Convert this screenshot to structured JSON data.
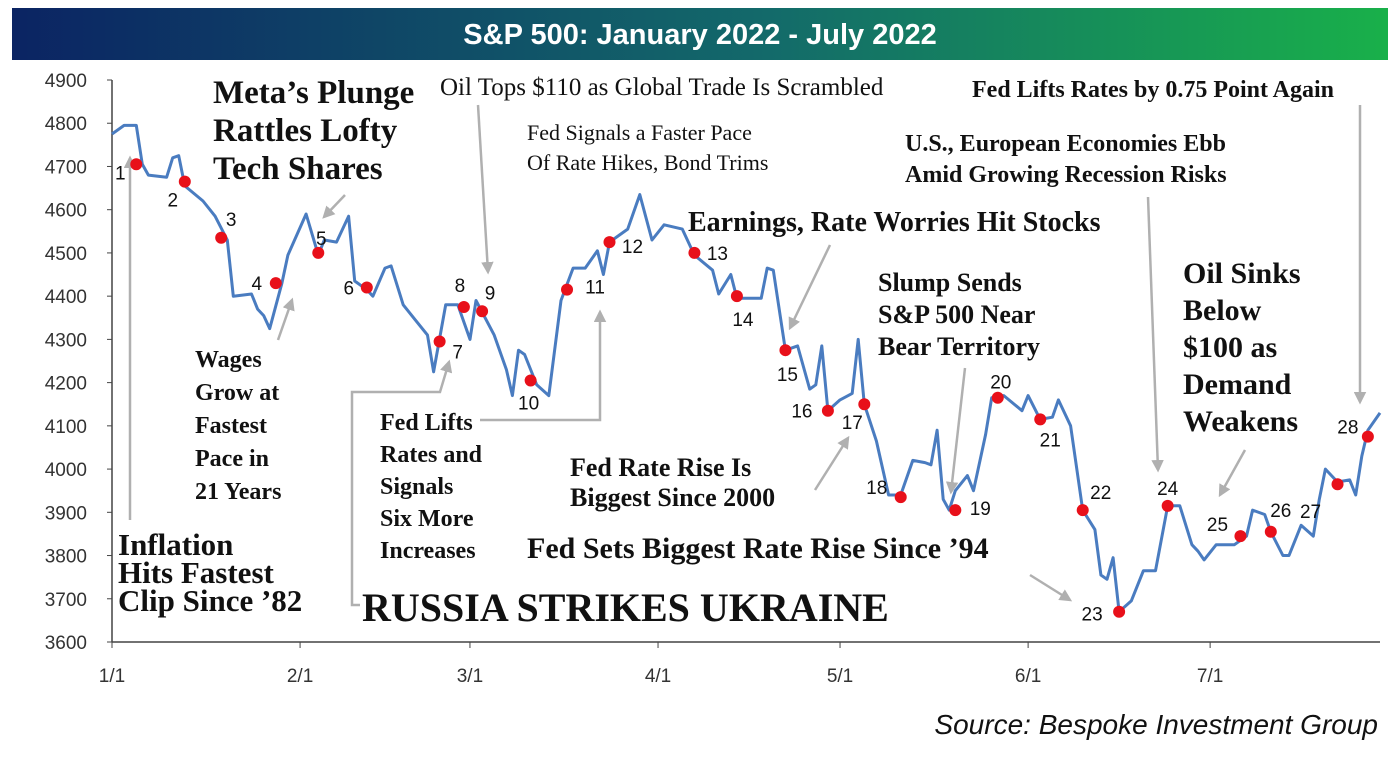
{
  "chart_data": {
    "type": "line",
    "title": "S&P 500: January 2022 - July 2022",
    "source": "Source: Bespoke Investment Group",
    "color": "#4a7cc0",
    "x": [
      0,
      2,
      4,
      5,
      6,
      9,
      10,
      11,
      12,
      15,
      17,
      19,
      20,
      23,
      24,
      25,
      26,
      28,
      29,
      32,
      34,
      35,
      37,
      39,
      40,
      42,
      43,
      45,
      46,
      48,
      50,
      52,
      53,
      55,
      57,
      59,
      60,
      63,
      65,
      66,
      67,
      68,
      70,
      72,
      74,
      76,
      78,
      80,
      81,
      82,
      85,
      87,
      89,
      91,
      94,
      96,
      99,
      100,
      102,
      103,
      107,
      108,
      109,
      111,
      113,
      115,
      116,
      117,
      118,
      120,
      122,
      123,
      124,
      126,
      128,
      130,
      132,
      134,
      135,
      136,
      137,
      138,
      139,
      141,
      142,
      144,
      145,
      147,
      150,
      151,
      153,
      155,
      156,
      158,
      160,
      162,
      163,
      164,
      165,
      166,
      168,
      170,
      172,
      174,
      176,
      178,
      179,
      180,
      182,
      185,
      187,
      188,
      190,
      191,
      193,
      194,
      196,
      198,
      199,
      200,
      202,
      204,
      205,
      206,
      207,
      209
    ],
    "values": [
      4775,
      4795,
      4795,
      4705,
      4680,
      4675,
      4720,
      4725,
      4655,
      4620,
      4585,
      4530,
      4400,
      4405,
      4370,
      4355,
      4325,
      4430,
      4495,
      4590,
      4495,
      4530,
      4525,
      4585,
      4435,
      4415,
      4400,
      4465,
      4470,
      4380,
      4345,
      4310,
      4225,
      4380,
      4380,
      4300,
      4390,
      4310,
      4230,
      4170,
      4275,
      4265,
      4195,
      4170,
      4390,
      4465,
      4465,
      4505,
      4450,
      4525,
      4555,
      4635,
      4530,
      4565,
      4555,
      4495,
      4460,
      4405,
      4450,
      4395,
      4395,
      4465,
      4460,
      4275,
      4285,
      4185,
      4195,
      4285,
      4135,
      4160,
      4175,
      4300,
      4150,
      4065,
      3940,
      3940,
      4020,
      4015,
      4010,
      4090,
      3930,
      3905,
      3950,
      3985,
      3950,
      4080,
      4165,
      4170,
      4135,
      4170,
      4115,
      4120,
      4160,
      4100,
      3905,
      3860,
      3755,
      3745,
      3795,
      3670,
      3695,
      3765,
      3765,
      3915,
      3915,
      3825,
      3810,
      3790,
      3825,
      3825,
      3845,
      3905,
      3895,
      3855,
      3800,
      3800,
      3870,
      3845,
      3930,
      4000,
      3970,
      3975,
      3940,
      4030,
      4090,
      4130
    ],
    "events": {
      "color": "#e8101a",
      "x": [
        4,
        12,
        18,
        27,
        34,
        42,
        54,
        58,
        61,
        69,
        75,
        82,
        96,
        103,
        111,
        118,
        124,
        130,
        139,
        146,
        153,
        160,
        166,
        174,
        186,
        191,
        202,
        207
      ],
      "values": [
        4705,
        4665,
        4535,
        4430,
        4500,
        4420,
        4295,
        4375,
        4365,
        4205,
        4415,
        4525,
        4500,
        4400,
        4275,
        4135,
        4150,
        3935,
        3905,
        4165,
        4115,
        3905,
        3670,
        3915,
        3845,
        3855,
        3965,
        4075
      ],
      "labels": [
        "1",
        "2",
        "3",
        "4",
        "5",
        "6",
        "7",
        "8",
        "9",
        "10",
        "11",
        "12",
        "13",
        "14",
        "15",
        "16",
        "17",
        "18",
        "19",
        "20",
        "21",
        "22",
        "23",
        "24",
        "25",
        "26",
        "27",
        "28"
      ]
    },
    "annotations": [
      [
        "Inflation",
        "Hits Fastest",
        "Clip Since ’82"
      ],
      [
        "Meta’s Plunge",
        "Rattles Lofty",
        "Tech Shares"
      ],
      [
        "Wages",
        "Grow at",
        "Fastest",
        "Pace in",
        "21 Years"
      ],
      [
        "Oil Tops $110 as Global Trade Is Scrambled"
      ],
      [
        "Fed Signals a Faster Pace",
        "Of Rate Hikes, Bond Trims"
      ],
      [
        "Earnings, Rate Worries Hit Stocks"
      ],
      [
        "Fed Lifts Rates by 0.75 Point Again"
      ],
      [
        "U.S., European Economies Ebb",
        "Amid Growing Recession Risks"
      ],
      [
        "Slump Sends",
        "S&P 500 Near",
        "Bear Territory"
      ],
      [
        "Oil Sinks",
        "Below",
        "$100 as",
        "Demand",
        "Weakens"
      ],
      [
        "Fed Lifts",
        "Rates and",
        "Signals",
        "Six More",
        "Increases"
      ],
      [
        "Fed Rate Rise Is",
        "Biggest Since 2000"
      ],
      [
        "Fed Sets Biggest Rate Rise Since ’94"
      ],
      [
        "RUSSIA STRIKES UKRAINE"
      ]
    ],
    "xlim": [
      0,
      209
    ],
    "ylim": [
      3600,
      4900
    ],
    "xticks": [
      {
        "value": 0,
        "label": "1/1"
      },
      {
        "value": 31,
        "label": "2/1"
      },
      {
        "value": 59,
        "label": "3/1"
      },
      {
        "value": 90,
        "label": "4/1"
      },
      {
        "value": 120,
        "label": "5/1"
      },
      {
        "value": 151,
        "label": "6/1"
      },
      {
        "value": 181,
        "label": "7/1"
      }
    ],
    "yticks": [
      3600,
      3700,
      3800,
      3900,
      4000,
      4100,
      4200,
      4300,
      4400,
      4500,
      4600,
      4700,
      4800,
      4900
    ],
    "grid": false
  }
}
